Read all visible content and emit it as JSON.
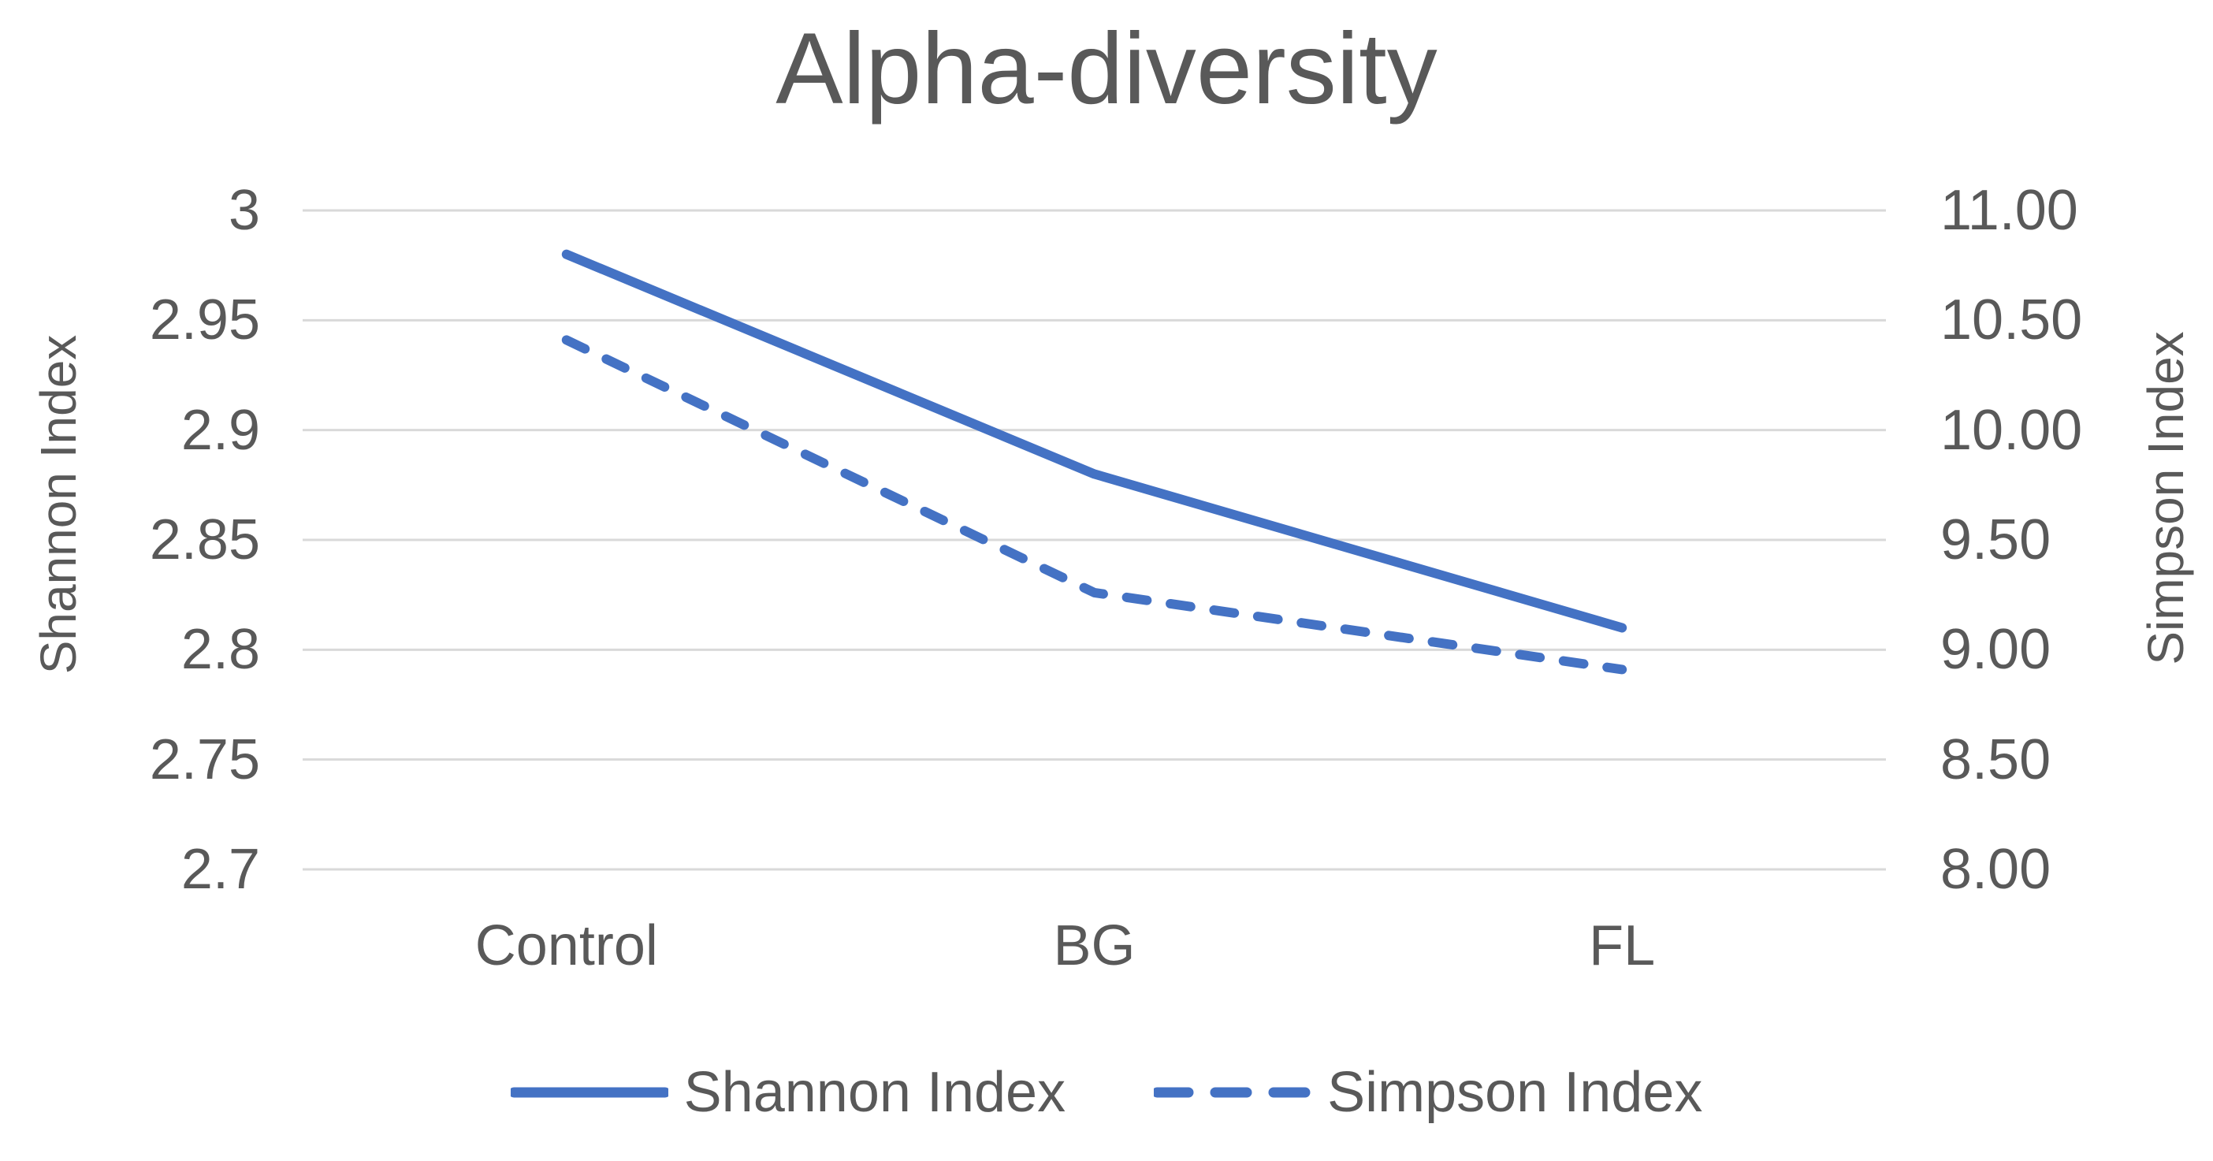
{
  "chart_data": {
    "type": "line",
    "title": "Alpha-diversity",
    "categories": [
      "Control",
      "BG",
      "FL"
    ],
    "series": [
      {
        "name": "Shannon Index",
        "axis": "left",
        "style": "solid",
        "color": "#4472C4",
        "values": [
          2.98,
          2.88,
          2.81
        ]
      },
      {
        "name": "Simpson Index",
        "axis": "right",
        "style": "dashed",
        "color": "#4472C4",
        "values": [
          10.41,
          9.26,
          8.91
        ]
      }
    ],
    "left_axis": {
      "label": "Shannon Index",
      "min": 2.7,
      "max": 3.0,
      "ticks": [
        "3",
        "2.95",
        "2.9",
        "2.85",
        "2.8",
        "2.75",
        "2.7"
      ]
    },
    "right_axis": {
      "label": "Simpson Index",
      "min": 8.0,
      "max": 11.0,
      "ticks": [
        "11.00",
        "10.50",
        "10.00",
        "9.50",
        "9.00",
        "8.50",
        "8.00"
      ]
    },
    "grid": true,
    "legend_position": "bottom",
    "colors": {
      "series_line": "#4472C4",
      "gridline": "#D9D9D9",
      "text": "#595959",
      "background": "#FFFFFF"
    }
  }
}
